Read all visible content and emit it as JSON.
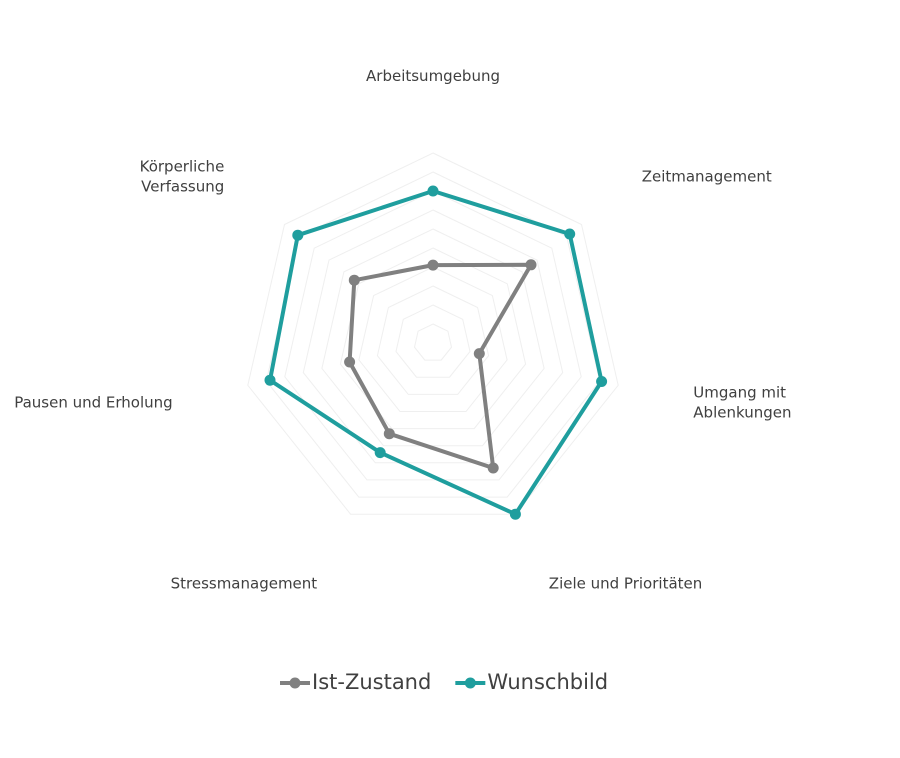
{
  "chart_data": {
    "type": "radar",
    "categories": [
      [
        "Arbeitsumgebung"
      ],
      [
        "Zeitmanagement"
      ],
      [
        "Umgang mit",
        "Ablenkungen"
      ],
      [
        "Ziele und Prioritäten"
      ],
      [
        "Stressmanagement"
      ],
      [
        "Pausen und Erholung"
      ],
      [
        "Körperliche",
        "Verfassung"
      ]
    ],
    "series": [
      {
        "name": "Ist-Zustand",
        "values": [
          4.1,
          6.6,
          2.5,
          7.3,
          5.3,
          4.5,
          5.3
        ],
        "color": "#808080"
      },
      {
        "name": "Wunschbild",
        "values": [
          8.0,
          9.2,
          9.1,
          10.0,
          6.4,
          8.8,
          9.1
        ],
        "color": "#1f9e9e"
      }
    ],
    "rlim": [
      0,
      10
    ],
    "grid_rings": 10,
    "grid": true,
    "legend": "bottom"
  }
}
